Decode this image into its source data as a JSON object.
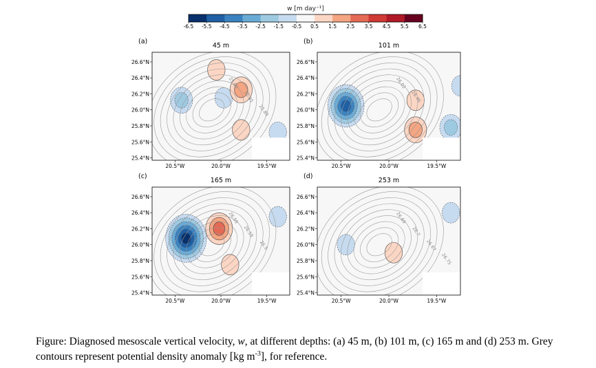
{
  "colorbar": {
    "title": "w [m day⁻¹]",
    "ticks": [
      "-6.5",
      "-5.5",
      "-4.5",
      "-3.5",
      "-2.5",
      "-1.5",
      "-0.5",
      "0.5",
      "1.5",
      "2.5",
      "3.5",
      "4.5",
      "5.5",
      "6.5"
    ],
    "colors": [
      "#08306b",
      "#1f5fa3",
      "#3b83c0",
      "#6aabd6",
      "#9ecae1",
      "#c6dbef",
      "#f7f7f7",
      "#fcd6c4",
      "#f4a582",
      "#e46a55",
      "#cf3a35",
      "#b01a27",
      "#67001f"
    ]
  },
  "chart_data": [
    {
      "type": "heatmap",
      "panel": "(a)",
      "title": "45 m",
      "x_ticks": [
        "20.5°W",
        "20.0°W",
        "19.5°W"
      ],
      "y_ticks": [
        "26.6°N",
        "26.4°N",
        "26.2°N",
        "26.0°N",
        "25.8°N",
        "25.6°N",
        "25.4°N"
      ],
      "contour_labels": [
        "25.65",
        "25.85",
        "25.80"
      ],
      "w_features": [
        {
          "lon": -20.43,
          "lat": 26.12,
          "w": -2.5
        },
        {
          "lon": -19.97,
          "lat": 26.15,
          "w": -1.5
        },
        {
          "lon": -20.05,
          "lat": 26.5,
          "w": 1.5
        },
        {
          "lon": -19.78,
          "lat": 26.25,
          "w": 2.5
        },
        {
          "lon": -19.78,
          "lat": 25.75,
          "w": 1.5
        },
        {
          "lon": -19.38,
          "lat": 25.72,
          "w": -1.5
        }
      ]
    },
    {
      "type": "heatmap",
      "panel": "(b)",
      "title": "101 m",
      "x_ticks": [
        "20.5°W",
        "20.0°W",
        "19.5°W"
      ],
      "y_ticks": [
        "26.6°N",
        "26.4°N",
        "26.2°N",
        "26.0°N",
        "25.8°N",
        "25.6°N",
        "25.4°N"
      ],
      "contour_labels": [
        "26.02",
        "26.46"
      ],
      "w_features": [
        {
          "lon": -20.45,
          "lat": 26.05,
          "w": -5.5
        },
        {
          "lon": -19.72,
          "lat": 26.12,
          "w": 1.5
        },
        {
          "lon": -19.72,
          "lat": 25.75,
          "w": 2.5
        },
        {
          "lon": -19.25,
          "lat": 26.3,
          "w": -1.5
        },
        {
          "lon": -19.35,
          "lat": 25.78,
          "w": -2.5
        }
      ]
    },
    {
      "type": "heatmap",
      "panel": "(c)",
      "title": "165 m",
      "x_ticks": [
        "20.5°W",
        "20.0°W",
        "19.5°W"
      ],
      "y_ticks": [
        "26.6°N",
        "26.4°N",
        "26.2°N",
        "26.0°N",
        "25.8°N",
        "25.6°N",
        "25.4°N"
      ],
      "contour_labels": [
        "26.56",
        "26.59",
        "26.5"
      ],
      "w_features": [
        {
          "lon": -20.38,
          "lat": 26.08,
          "w": -6.5
        },
        {
          "lon": -20.02,
          "lat": 26.2,
          "w": 3.5
        },
        {
          "lon": -19.9,
          "lat": 25.75,
          "w": 1.5
        },
        {
          "lon": -19.38,
          "lat": 26.35,
          "w": -1.5
        }
      ]
    },
    {
      "type": "heatmap",
      "panel": "(d)",
      "title": "253 m",
      "x_ticks": [
        "20.5°W",
        "20.0°W",
        "19.5°W"
      ],
      "y_ticks": [
        "26.6°N",
        "26.4°N",
        "26.2°N",
        "26.0°N",
        "25.8°N",
        "25.6°N",
        "25.4°N"
      ],
      "contour_labels": [
        "26.69",
        "26.7",
        "26.67",
        "26.75"
      ],
      "w_features": [
        {
          "lon": -20.45,
          "lat": 26.0,
          "w": -1.5
        },
        {
          "lon": -19.95,
          "lat": 25.9,
          "w": 1.5
        },
        {
          "lon": -19.35,
          "lat": 26.4,
          "w": -1.5
        }
      ]
    }
  ],
  "caption": {
    "part1": "Figure: Diagnosed mesoscale vertical velocity, ",
    "w": "w",
    "part2": ", at different depths: (a) 45 m, (b) 101 m, (c) 165 m and (d) 253 m. Grey contours represent potential density anomaly [kg m",
    "sup": "-3",
    "part3": "], for reference."
  }
}
